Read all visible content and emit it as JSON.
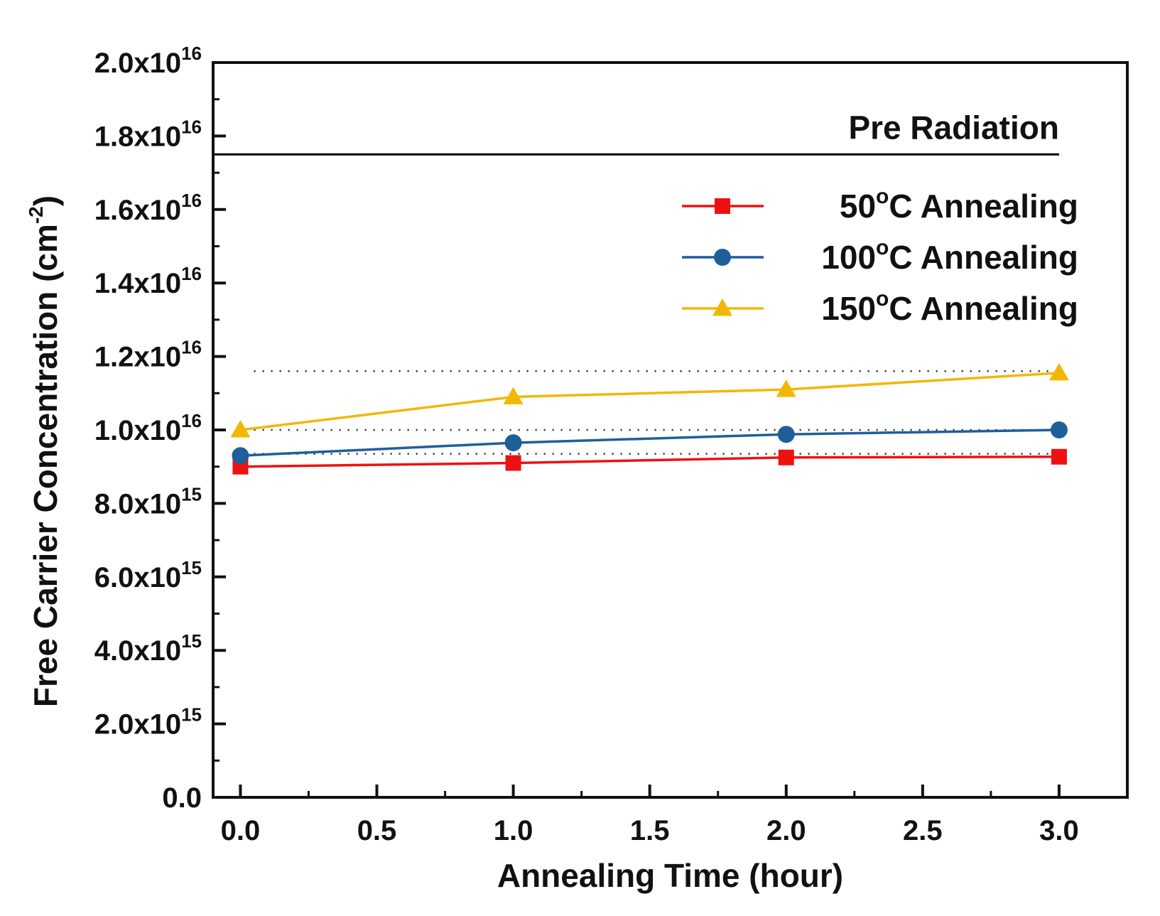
{
  "chart_data": {
    "type": "line",
    "xlabel": "Annealing Time (hour)",
    "ylabel": {
      "main": "Free Carrier Concentration (cm",
      "sup": "-2",
      "close": ")"
    },
    "xlim": [
      -0.1,
      3.25
    ],
    "ylim": [
      0,
      2e+16
    ],
    "x_ticks": [
      {
        "value": 0.0,
        "label": "0.0"
      },
      {
        "value": 0.5,
        "label": "0.5"
      },
      {
        "value": 1.0,
        "label": "1.0"
      },
      {
        "value": 1.5,
        "label": "1.5"
      },
      {
        "value": 2.0,
        "label": "2.0"
      },
      {
        "value": 2.5,
        "label": "2.5"
      },
      {
        "value": 3.0,
        "label": "3.0"
      }
    ],
    "y_ticks": [
      {
        "value": 0,
        "label": "0.0",
        "mant": "0.0",
        "exp": ""
      },
      {
        "value": 2000000000000000.0,
        "label": "2.0x10^15",
        "mant": "2.0x10",
        "exp": "15"
      },
      {
        "value": 4000000000000000.0,
        "label": "4.0x10^15",
        "mant": "4.0x10",
        "exp": "15"
      },
      {
        "value": 6000000000000000.0,
        "label": "6.0x10^15",
        "mant": "6.0x10",
        "exp": "15"
      },
      {
        "value": 8000000000000000.0,
        "label": "8.0x10^15",
        "mant": "8.0x10",
        "exp": "15"
      },
      {
        "value": 1e+16,
        "label": "1.0x10^16",
        "mant": "1.0x10",
        "exp": "16"
      },
      {
        "value": 1.2e+16,
        "label": "1.2x10^16",
        "mant": "1.2x10",
        "exp": "16"
      },
      {
        "value": 1.4e+16,
        "label": "1.4x10^16",
        "mant": "1.4x10",
        "exp": "16"
      },
      {
        "value": 1.6e+16,
        "label": "1.6x10^16",
        "mant": "1.6x10",
        "exp": "16"
      },
      {
        "value": 1.8e+16,
        "label": "1.8x10^16",
        "mant": "1.8x10",
        "exp": "16"
      },
      {
        "value": 2e+16,
        "label": "2.0x10^16",
        "mant": "2.0x10",
        "exp": "16"
      }
    ],
    "x": [
      0,
      1,
      2,
      3
    ],
    "series": [
      {
        "name": "50°C  Annealing",
        "temp": "50",
        "suffix": "C  Annealing",
        "color": "#ee1111",
        "marker": "square",
        "values": [
          9000000000000000.0,
          9100000000000000.0,
          9250000000000000.0,
          9270000000000000.0
        ]
      },
      {
        "name": "100°C Annealing",
        "temp": "100",
        "suffix": "C Annealing",
        "color": "#1f5f99",
        "marker": "circle",
        "values": [
          9300000000000000.0,
          9650000000000000.0,
          9880000000000000.0,
          1e+16
        ]
      },
      {
        "name": "150°C Annealing",
        "temp": "150",
        "suffix": "C Annealing",
        "color": "#f2b705",
        "marker": "triangle",
        "values": [
          1e+16,
          1.09e+16,
          1.11e+16,
          1.155e+16
        ]
      }
    ],
    "reference_line": {
      "label": "Pre Radiation",
      "value": 1.75e+16,
      "x_range": [
        -0.1,
        3.0
      ],
      "color": "#000000"
    },
    "dotted_guides": [
      {
        "value": 1.16e+16,
        "x_range": [
          0.05,
          3.0
        ]
      },
      {
        "value": 1e+16,
        "x_range": [
          0.05,
          3.0
        ]
      },
      {
        "value": 9350000000000000.0,
        "x_range": [
          0.05,
          3.0
        ]
      }
    ],
    "legend": {
      "placement": "top-right",
      "degree_symbol": "o"
    }
  }
}
